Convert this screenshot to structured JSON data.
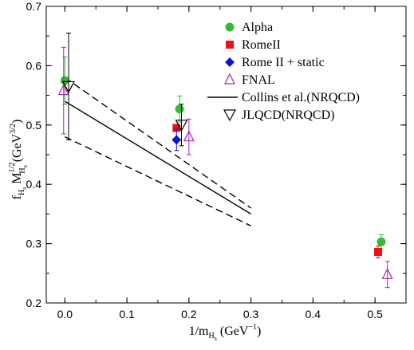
{
  "chart_data": {
    "type": "scatter",
    "xlabel": {
      "main": "1/m",
      "sub": "H",
      "subsub": "s",
      "unit_open": " (GeV",
      "unit_exp": "−1",
      "unit_close": ")"
    },
    "ylabel": {
      "f": "f",
      "f_sub": "H",
      "f_subsub": "s",
      "M": " M",
      "M_sup": "1/2",
      "M_sub": "H",
      "M_subsub": "s",
      "unit_open": " (GeV",
      "unit_exp": "3/2",
      "unit_close": ")"
    },
    "xlim": [
      -0.03,
      0.55
    ],
    "ylim": [
      0.2,
      0.7
    ],
    "x_ticks": [
      {
        "value": 0.0,
        "label": "0.0"
      },
      {
        "value": 0.1,
        "label": "0.1"
      },
      {
        "value": 0.2,
        "label": "0.2"
      },
      {
        "value": 0.3,
        "label": "0.3"
      },
      {
        "value": 0.4,
        "label": "0.4"
      },
      {
        "value": 0.5,
        "label": "0.5"
      }
    ],
    "y_ticks": [
      {
        "value": 0.2,
        "label": "0.2"
      },
      {
        "value": 0.3,
        "label": "0.3"
      },
      {
        "value": 0.4,
        "label": "0.4"
      },
      {
        "value": 0.5,
        "label": "0.5"
      },
      {
        "value": 0.6,
        "label": "0.6"
      },
      {
        "value": 0.7,
        "label": "0.7"
      }
    ],
    "x_minor_step": 0.05,
    "y_minor_step": 0.05,
    "grid": false,
    "legend_position": "top-right",
    "series": [
      {
        "name": "Alpha",
        "marker": "circle",
        "color": "#33bb33",
        "points": [
          {
            "x": 0.0,
            "y": 0.575,
            "err": 0.04
          },
          {
            "x": 0.185,
            "y": 0.527,
            "err": 0.022
          },
          {
            "x": 0.51,
            "y": 0.303,
            "err": 0.012
          }
        ]
      },
      {
        "name": "RomeII",
        "marker": "square",
        "color": "#ee1111",
        "points": [
          {
            "x": 0.18,
            "y": 0.495,
            "err": 0.0
          },
          {
            "x": 0.505,
            "y": 0.286,
            "err": 0.01
          }
        ]
      },
      {
        "name": "Rome II + static",
        "marker": "diamond",
        "color": "#1111dd",
        "points": [
          {
            "x": 0.18,
            "y": 0.475,
            "err": 0.018
          }
        ]
      },
      {
        "name": "FNAL",
        "marker": "triangle-up-open",
        "color": "#aa22bb",
        "points": [
          {
            "x": -0.002,
            "y": 0.558,
            "err": 0.073
          },
          {
            "x": 0.2,
            "y": 0.48,
            "err": 0.03
          },
          {
            "x": 0.52,
            "y": 0.248,
            "err": 0.022
          }
        ]
      },
      {
        "name": "Collins et al.(NRQCD)",
        "marker": "line",
        "color": "#000000",
        "lines": [
          {
            "style": "solid",
            "x": [
              0.0,
              0.3
            ],
            "y": [
              0.54,
              0.35
            ]
          },
          {
            "style": "dashed",
            "x": [
              0.0,
              0.3
            ],
            "y": [
              0.58,
              0.36
            ]
          },
          {
            "style": "dashed",
            "x": [
              0.0,
              0.3
            ],
            "y": [
              0.48,
              0.33
            ]
          }
        ]
      },
      {
        "name": "JLQCD(NRQCD)",
        "marker": "triangle-down-open",
        "color": "#000000",
        "points": [
          {
            "x": 0.006,
            "y": 0.565,
            "err": 0.09
          },
          {
            "x": 0.188,
            "y": 0.5,
            "err": 0.035
          }
        ]
      }
    ]
  }
}
